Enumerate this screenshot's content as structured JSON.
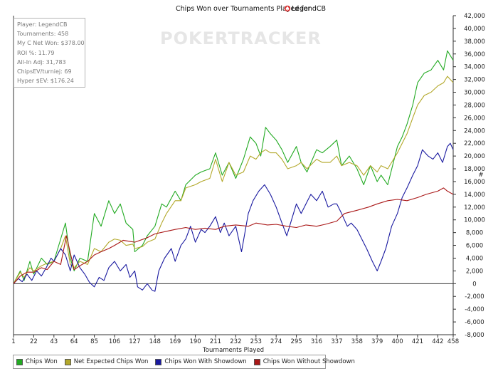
{
  "chart_data": {
    "type": "line",
    "title_prefix": "Chips Won over Tournaments Played for",
    "title_player": "LegendCB",
    "title_icon": "spade-logo-icon",
    "xlabel": "Tournaments Played",
    "ylabel": "#",
    "xlim": [
      1,
      458
    ],
    "ylim": [
      -8000,
      42000
    ],
    "x_ticks": [
      1,
      22,
      43,
      64,
      85,
      106,
      127,
      148,
      169,
      190,
      211,
      232,
      253,
      274,
      295,
      316,
      337,
      358,
      379,
      400,
      421,
      442,
      458
    ],
    "y_ticks": [
      42000,
      40000,
      38000,
      36000,
      34000,
      32000,
      30000,
      28000,
      26000,
      24000,
      22000,
      20000,
      18000,
      16000,
      14000,
      12000,
      10000,
      8000,
      6000,
      4000,
      2000,
      0,
      -2000,
      -4000,
      -6000,
      -8000
    ],
    "y_tick_labels": [
      "42,000",
      "40,000",
      "38,000",
      "36,000",
      "34,000",
      "32,000",
      "30,000",
      "28,000",
      "26,000",
      "24,000",
      "22,000",
      "20,000",
      "18,000",
      "16,000",
      "14,000",
      "12,000",
      "10,000",
      "8,000",
      "6,000",
      "4,000",
      "2,000",
      "0",
      "-2,000",
      "-4,000",
      "-6,000",
      "-8,000"
    ],
    "grid": false,
    "legend_position": "bottom-left",
    "series": [
      {
        "name": "Chips Won",
        "color": "#22aa22",
        "x": [
          1,
          8,
          12,
          18,
          22,
          30,
          36,
          43,
          50,
          55,
          60,
          64,
          70,
          78,
          85,
          92,
          100,
          106,
          112,
          118,
          125,
          127,
          135,
          140,
          148,
          155,
          160,
          169,
          175,
          180,
          190,
          196,
          205,
          211,
          218,
          225,
          232,
          240,
          247,
          253,
          258,
          263,
          268,
          274,
          280,
          286,
          295,
          300,
          306,
          316,
          322,
          330,
          337,
          342,
          350,
          358,
          365,
          372,
          379,
          383,
          390,
          400,
          405,
          410,
          416,
          421,
          428,
          435,
          442,
          448,
          452,
          458
        ],
        "values": [
          0,
          2000,
          500,
          3500,
          1500,
          4000,
          3000,
          3500,
          7000,
          9500,
          4000,
          2000,
          4000,
          3500,
          11000,
          9000,
          13000,
          11000,
          12500,
          9500,
          8500,
          5000,
          6000,
          7500,
          9000,
          12500,
          12000,
          14500,
          13000,
          15500,
          17000,
          17500,
          18000,
          20500,
          17000,
          19000,
          16500,
          19500,
          23000,
          22000,
          20000,
          24500,
          23500,
          22500,
          21000,
          19000,
          21500,
          19000,
          17500,
          21000,
          20500,
          21500,
          22500,
          18500,
          20000,
          18000,
          15500,
          18500,
          16000,
          17000,
          15500,
          21500,
          23000,
          25000,
          28000,
          31500,
          33000,
          33500,
          35000,
          33500,
          36500,
          35000
        ]
      },
      {
        "name": "Net Expected Chips Won",
        "color": "#b3a82a",
        "x": [
          1,
          8,
          12,
          18,
          22,
          30,
          36,
          43,
          50,
          55,
          60,
          64,
          70,
          78,
          85,
          92,
          100,
          106,
          112,
          118,
          125,
          127,
          135,
          140,
          148,
          155,
          160,
          169,
          175,
          180,
          190,
          196,
          205,
          211,
          218,
          225,
          232,
          240,
          247,
          253,
          258,
          263,
          268,
          274,
          280,
          286,
          295,
          300,
          306,
          316,
          322,
          330,
          337,
          342,
          350,
          358,
          365,
          372,
          379,
          383,
          390,
          400,
          405,
          410,
          416,
          421,
          428,
          435,
          442,
          448,
          452,
          458
        ],
        "values": [
          0,
          1800,
          1000,
          2500,
          2000,
          2800,
          3200,
          3500,
          5500,
          7500,
          3000,
          2500,
          3500,
          3000,
          5500,
          5000,
          6500,
          7000,
          6800,
          6000,
          6200,
          5500,
          5800,
          6500,
          7000,
          9500,
          11000,
          13000,
          13000,
          15000,
          15500,
          16000,
          16500,
          19500,
          16000,
          19000,
          17000,
          17500,
          20000,
          19500,
          20500,
          21000,
          20500,
          20500,
          19500,
          18000,
          18500,
          19000,
          18000,
          19500,
          19000,
          19000,
          20000,
          18500,
          19000,
          18500,
          17000,
          18500,
          17500,
          18500,
          18000,
          20500,
          22000,
          23500,
          26000,
          28000,
          29500,
          30000,
          31000,
          31500,
          32500,
          31500
        ]
      },
      {
        "name": "Chips Won With Showdown",
        "color": "#1a1aa0",
        "x": [
          1,
          6,
          10,
          15,
          20,
          25,
          30,
          35,
          40,
          43,
          50,
          55,
          60,
          64,
          70,
          75,
          80,
          85,
          90,
          95,
          100,
          106,
          112,
          118,
          122,
          127,
          130,
          135,
          140,
          145,
          148,
          152,
          158,
          165,
          169,
          175,
          180,
          185,
          190,
          196,
          200,
          205,
          211,
          216,
          220,
          225,
          232,
          238,
          245,
          250,
          256,
          262,
          268,
          274,
          280,
          285,
          290,
          295,
          300,
          305,
          310,
          316,
          322,
          328,
          334,
          337,
          342,
          348,
          352,
          358,
          363,
          368,
          374,
          379,
          383,
          388,
          394,
          400,
          405,
          410,
          416,
          421,
          426,
          432,
          437,
          442,
          447,
          452,
          455,
          458
        ],
        "values": [
          0,
          800,
          300,
          1500,
          500,
          2000,
          1200,
          2500,
          4000,
          3500,
          5500,
          4500,
          2000,
          4500,
          2500,
          1500,
          200,
          -500,
          1000,
          500,
          2500,
          3500,
          2000,
          3000,
          1000,
          2000,
          -500,
          -1000,
          0,
          -1000,
          -1200,
          2000,
          4000,
          5500,
          3500,
          6000,
          7000,
          9000,
          6500,
          8500,
          8000,
          9000,
          10500,
          8000,
          9500,
          7500,
          9000,
          5000,
          11000,
          13000,
          14500,
          15500,
          14000,
          12000,
          9500,
          7500,
          10000,
          12500,
          11000,
          12500,
          14000,
          13000,
          14500,
          12000,
          12500,
          12500,
          11000,
          9000,
          9500,
          8500,
          7000,
          5500,
          3500,
          2000,
          3500,
          5500,
          9000,
          11000,
          13500,
          15000,
          17000,
          18500,
          21000,
          20000,
          19500,
          20500,
          19000,
          21500,
          22000,
          21000
        ]
      },
      {
        "name": "Chips Won Without Showdown",
        "color": "#aa1818",
        "x": [
          1,
          8,
          15,
          22,
          30,
          36,
          43,
          50,
          56,
          64,
          70,
          78,
          85,
          92,
          100,
          106,
          115,
          127,
          140,
          148,
          160,
          169,
          180,
          190,
          200,
          211,
          220,
          232,
          245,
          253,
          265,
          274,
          285,
          295,
          305,
          316,
          325,
          337,
          345,
          358,
          370,
          379,
          390,
          400,
          410,
          421,
          430,
          442,
          448,
          452,
          458
        ],
        "values": [
          0,
          1200,
          1800,
          1800,
          2500,
          2200,
          3500,
          3000,
          7500,
          2200,
          2800,
          3500,
          4500,
          5000,
          5500,
          6000,
          6800,
          6500,
          7200,
          7800,
          8200,
          8500,
          8800,
          8500,
          8700,
          8500,
          9000,
          9200,
          9000,
          9500,
          9200,
          9300,
          9000,
          8800,
          9200,
          9000,
          9300,
          9800,
          11000,
          11500,
          12000,
          12500,
          13000,
          13200,
          13000,
          13500,
          14000,
          14500,
          15000,
          14500,
          14000
        ]
      }
    ]
  },
  "stats": [
    "Player: LegendCB",
    "Tournaments: 458",
    "My C Net Won: $378.00",
    "ROI %: 11.79",
    "All-In Adj: 31,783",
    "ChipsEV/turniej: 69",
    "Hyper $EV: $176.24"
  ],
  "watermark": "POKERTRACKER",
  "legend": [
    {
      "label": "Chips Won",
      "color": "#22aa22"
    },
    {
      "label": "Net Expected Chips Won",
      "color": "#b3a82a"
    },
    {
      "label": "Chips Won With Showdown",
      "color": "#1a1aa0"
    },
    {
      "label": "Chips Won Without Showdown",
      "color": "#aa1818"
    }
  ]
}
